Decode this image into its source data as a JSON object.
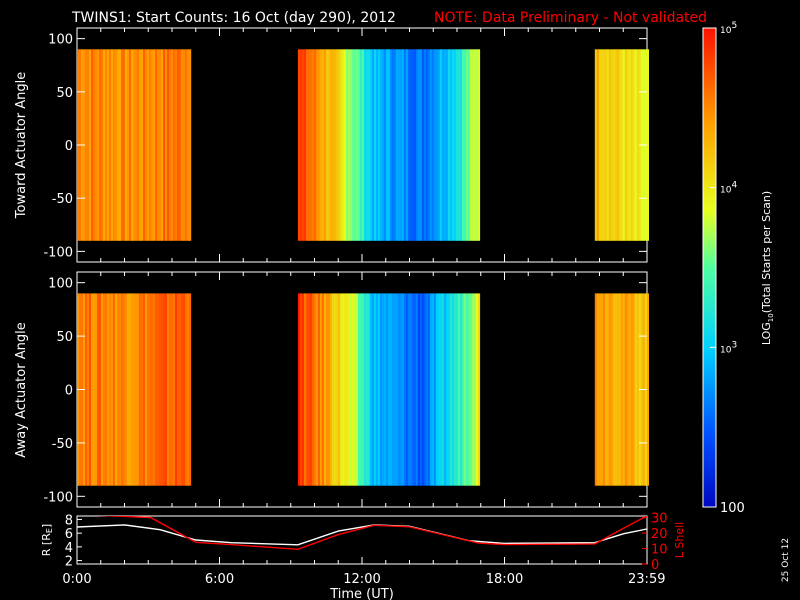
{
  "title": "TWINS1: Start Counts: 16 Oct (day 290), 2012",
  "note": "NOTE: Data Preliminary - Not validated",
  "footer_date": "25 Oct 12",
  "colors": {
    "background": "#000000",
    "axes": "#ffffff",
    "note": "#ff0000",
    "r_line": "#ffffff",
    "l_shell_line": "#ff0000"
  },
  "chart_data": [
    {
      "type": "heatmap",
      "name": "toward",
      "ylabel": "Toward Actuator Angle",
      "yticks": [
        100,
        50,
        0,
        -50,
        -100
      ],
      "ylim": [
        -110,
        110
      ],
      "xlim": [
        0,
        24
      ],
      "data_ylim": [
        -90,
        90
      ],
      "data_segments": [
        [
          0,
          4.8
        ],
        [
          9.3,
          16.9
        ],
        [
          21.8,
          23.99
        ]
      ],
      "colorscale_log10_profile": [
        {
          "t": 0.0,
          "v": 4.55
        },
        {
          "t": 2.0,
          "v": 4.45
        },
        {
          "t": 4.4,
          "v": 4.6
        },
        {
          "t": 9.3,
          "v": 4.8
        },
        {
          "t": 10.5,
          "v": 4.3
        },
        {
          "t": 11.5,
          "v": 3.7
        },
        {
          "t": 12.5,
          "v": 2.9
        },
        {
          "t": 14.5,
          "v": 2.6
        },
        {
          "t": 16.0,
          "v": 3.2
        },
        {
          "t": 16.9,
          "v": 3.9
        },
        {
          "t": 21.8,
          "v": 4.3
        },
        {
          "t": 23.99,
          "v": 3.8
        }
      ]
    },
    {
      "type": "heatmap",
      "name": "away",
      "ylabel": "Away Actuator Angle",
      "yticks": [
        100,
        50,
        0,
        -50,
        -100
      ],
      "ylim": [
        -110,
        110
      ],
      "xlim": [
        0,
        24
      ],
      "data_ylim": [
        -90,
        90
      ],
      "data_segments": [
        [
          0,
          4.8
        ],
        [
          9.3,
          16.9
        ],
        [
          21.8,
          23.99
        ]
      ],
      "colorscale_log10_profile": [
        {
          "t": 0.0,
          "v": 4.6
        },
        {
          "t": 2.0,
          "v": 4.5
        },
        {
          "t": 4.4,
          "v": 4.7
        },
        {
          "t": 9.3,
          "v": 4.8
        },
        {
          "t": 10.5,
          "v": 4.4
        },
        {
          "t": 11.5,
          "v": 3.8
        },
        {
          "t": 12.5,
          "v": 2.9
        },
        {
          "t": 14.5,
          "v": 2.5
        },
        {
          "t": 16.0,
          "v": 3.3
        },
        {
          "t": 16.9,
          "v": 4.0
        },
        {
          "t": 21.8,
          "v": 4.5
        },
        {
          "t": 23.99,
          "v": 4.2
        }
      ]
    },
    {
      "type": "line",
      "name": "orbit",
      "xlabel": "Time (UT)",
      "xticks": [
        "0:00",
        "6:00",
        "12:00",
        "18:00",
        "23:59"
      ],
      "xtick_values": [
        0,
        6,
        12,
        18,
        23.99
      ],
      "xlim": [
        0,
        24
      ],
      "ylabel_left": "R [R",
      "ylabel_left_sub": "E",
      "ylabel_left_end": "]",
      "ylabel_right": "L Shell",
      "yticks_left": [
        2,
        4,
        6,
        8
      ],
      "ylim_left": [
        1.5,
        8.5
      ],
      "yticks_right": [
        0,
        10,
        20,
        30
      ],
      "ylim_right": [
        0,
        31
      ],
      "series": [
        {
          "name": "R",
          "axis": "left",
          "points": [
            [
              0,
              6.9
            ],
            [
              2,
              7.2
            ],
            [
              3.5,
              6.5
            ],
            [
              5,
              5.0
            ],
            [
              6.5,
              4.6
            ],
            [
              9.3,
              4.3
            ],
            [
              11,
              6.3
            ],
            [
              12.5,
              7.2
            ],
            [
              14,
              7.0
            ],
            [
              16.5,
              4.9
            ],
            [
              18,
              4.5
            ],
            [
              21.8,
              4.6
            ],
            [
              23,
              5.9
            ],
            [
              23.99,
              6.6
            ]
          ]
        },
        {
          "name": "L Shell",
          "axis": "right",
          "points": [
            [
              0,
              32
            ],
            [
              3.1,
              30
            ],
            [
              5,
              14
            ],
            [
              6.5,
              12.5
            ],
            [
              9.3,
              9.5
            ],
            [
              11,
              19
            ],
            [
              12.5,
              25
            ],
            [
              14,
              24
            ],
            [
              16.9,
              13.5
            ],
            [
              18,
              12.5
            ],
            [
              21.8,
              13
            ],
            [
              23,
              23
            ],
            [
              23.99,
              31
            ]
          ]
        }
      ]
    },
    {
      "type": "colorbar",
      "name": "colorbar",
      "scale": "log",
      "range": [
        100,
        100000
      ],
      "label": "LOG",
      "label_sub": "10",
      "label_end": "(Total Starts per Scan)",
      "ticks": [
        {
          "value": 100000,
          "base": "10",
          "exp": "5",
          "plain": ""
        },
        {
          "value": 10000,
          "base": "10",
          "exp": "4",
          "plain": ""
        },
        {
          "value": 1000,
          "base": "10",
          "exp": "3",
          "plain": ""
        },
        {
          "value": 100,
          "base": "",
          "exp": "",
          "plain": "100"
        }
      ]
    }
  ]
}
